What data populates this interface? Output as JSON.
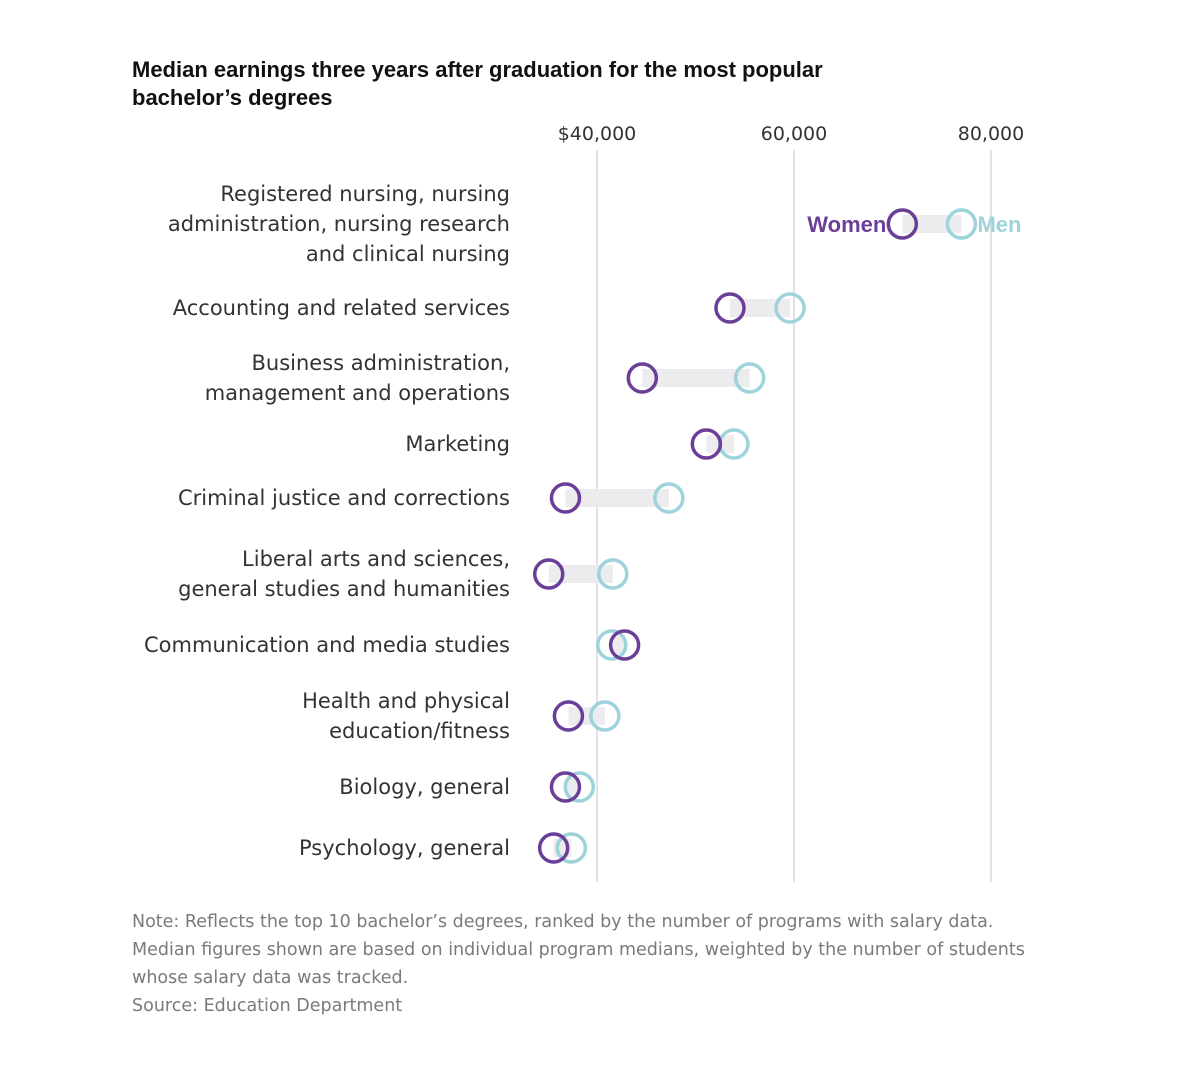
{
  "title": "Median earnings three years after graduation for the most popular bachelor’s degrees",
  "notes": [
    "Note: Reflects the top 10 bachelor’s degrees, ranked by the number of programs with salary data.",
    "Median figures shown are based on individual program medians, weighted by the number of students",
    "whose salary data was tracked.",
    "Source: Education Department"
  ],
  "colors": {
    "women": "#6b3f98",
    "men": "#9ed3dc",
    "connector": "#ececef",
    "grid": "#d9d9d9"
  },
  "chart_data": {
    "type": "dumbbell",
    "x_ticks": [
      {
        "value": 40000,
        "label": "$40,000"
      },
      {
        "value": 60000,
        "label": "60,000"
      },
      {
        "value": 80000,
        "label": "80,000"
      }
    ],
    "xlim": [
      33000,
      83000
    ],
    "grid": true,
    "legend": {
      "women": "Women",
      "men": "Men",
      "placement": "inline on first row"
    },
    "categories": [
      {
        "label": [
          "Registered nursing, nursing",
          "administration, nursing research",
          "and clinical nursing"
        ],
        "women": 71000,
        "men": 77000
      },
      {
        "label": [
          "Accounting and related services"
        ],
        "women": 53500,
        "men": 59600
      },
      {
        "label": [
          "Business administration,",
          "management and operations"
        ],
        "women": 44600,
        "men": 55500
      },
      {
        "label": [
          "Marketing"
        ],
        "women": 51100,
        "men": 53900
      },
      {
        "label": [
          "Criminal justice and corrections"
        ],
        "women": 36800,
        "men": 47300
      },
      {
        "label": [
          "Liberal arts and sciences,",
          "general studies and humanities"
        ],
        "women": 35100,
        "men": 41600
      },
      {
        "label": [
          "Communication and media studies"
        ],
        "women": 42800,
        "men": 41500
      },
      {
        "label": [
          "Health and physical",
          "education/fitness"
        ],
        "women": 37100,
        "men": 40800
      },
      {
        "label": [
          "Biology, general"
        ],
        "women": 36800,
        "men": 38200
      },
      {
        "label": [
          "Psychology, general"
        ],
        "women": 35600,
        "men": 37400
      }
    ]
  }
}
